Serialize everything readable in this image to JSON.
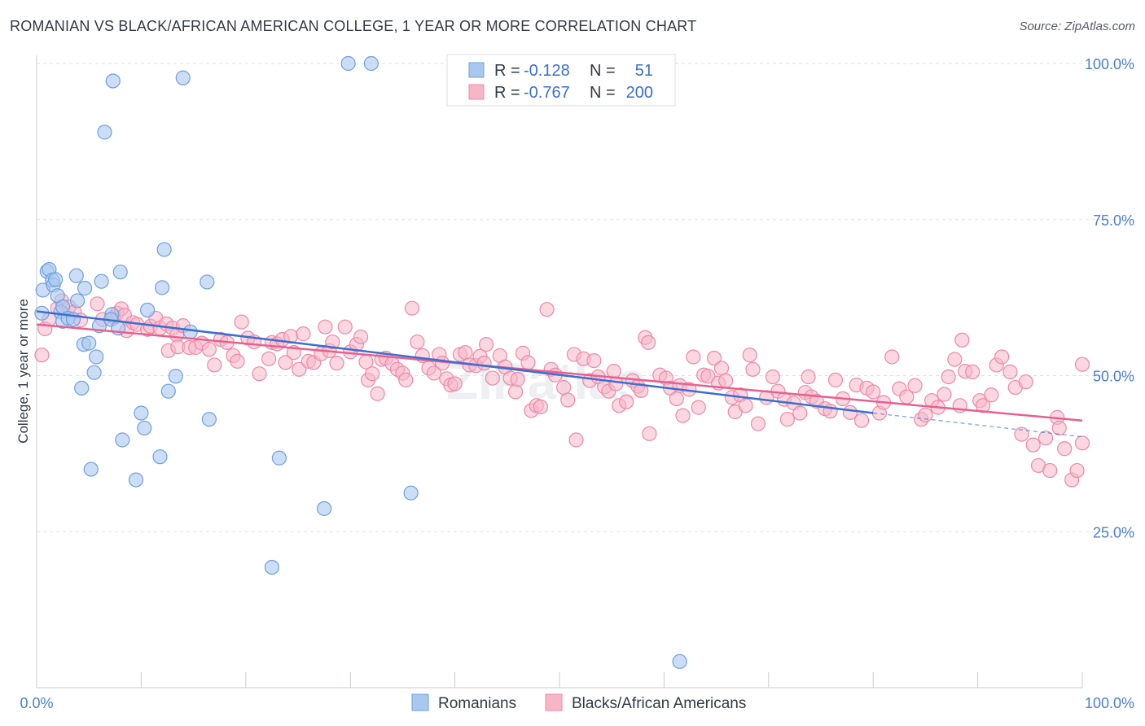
{
  "title": "ROMANIAN VS BLACK/AFRICAN AMERICAN COLLEGE, 1 YEAR OR MORE CORRELATION CHART",
  "source": "Source: ZipAtlas.com",
  "watermark": "ZIPatlas",
  "legend": {
    "r_label": "R =",
    "n_label": "N =",
    "rows": [
      {
        "r": "-0.128",
        "n": "51",
        "color": "#a8c8f0"
      },
      {
        "r": "-0.767",
        "n": "200",
        "color": "#f7b6c8"
      }
    ]
  },
  "bottom_legend": [
    "Romanians",
    "Blacks/African Americans"
  ],
  "chart_data": {
    "type": "scatter",
    "title": "ROMANIAN VS BLACK/AFRICAN AMERICAN COLLEGE, 1 YEAR OR MORE CORRELATION CHART",
    "xlabel": "",
    "ylabel": "College, 1 year or more",
    "xlim": [
      0,
      100
    ],
    "ylim": [
      0,
      103
    ],
    "x_tick_labels": [
      "0.0%",
      "100.0%"
    ],
    "y_ticks": [
      25,
      50,
      75,
      100
    ],
    "y_tick_labels": [
      "25.0%",
      "50.0%",
      "75.0%",
      "100.0%"
    ],
    "grid": true,
    "legend_position": "top-center",
    "colors": {
      "romanians_fill": "#a8c8f0",
      "romanians_stroke": "#6f9fe0",
      "romanians_line": "#3a6fd0",
      "blacks_fill": "#f7b6c8",
      "blacks_stroke": "#ee88a8",
      "blacks_line": "#e8608f"
    },
    "series": [
      {
        "name": "Romanians",
        "r": -0.128,
        "n": 51,
        "trend": {
          "x": [
            0,
            80
          ],
          "y": [
            60.3,
            44.0
          ],
          "extended_to": [
            100,
            40.2
          ]
        },
        "points": [
          [
            0.5,
            60
          ],
          [
            0.6,
            63.7
          ],
          [
            1,
            66.7
          ],
          [
            1.2,
            67
          ],
          [
            1.5,
            65.3
          ],
          [
            1.6,
            64.5
          ],
          [
            1.8,
            65.4
          ],
          [
            2,
            62.8
          ],
          [
            2.3,
            60.2
          ],
          [
            2.5,
            61
          ],
          [
            2.5,
            58.7
          ],
          [
            3,
            59.2
          ],
          [
            3.5,
            59
          ],
          [
            3.8,
            66
          ],
          [
            3.9,
            62
          ],
          [
            4.3,
            48
          ],
          [
            4.5,
            55
          ],
          [
            4.6,
            64
          ],
          [
            5,
            55.2
          ],
          [
            5.2,
            35
          ],
          [
            5.5,
            50.5
          ],
          [
            5.7,
            53
          ],
          [
            6,
            58
          ],
          [
            6.2,
            65.1
          ],
          [
            6.5,
            89
          ],
          [
            7.2,
            59.8
          ],
          [
            7.1,
            59
          ],
          [
            7.3,
            97.2
          ],
          [
            7.8,
            57.6
          ],
          [
            8,
            66.6
          ],
          [
            8.2,
            39.7
          ],
          [
            9.5,
            33.3
          ],
          [
            10,
            44
          ],
          [
            10.3,
            41.6
          ],
          [
            10.6,
            60.5
          ],
          [
            11.8,
            37
          ],
          [
            12,
            64.1
          ],
          [
            12.2,
            70.2
          ],
          [
            12.6,
            47.5
          ],
          [
            13.3,
            49.9
          ],
          [
            14,
            97.7
          ],
          [
            14.7,
            57
          ],
          [
            16.3,
            65
          ],
          [
            16.5,
            43
          ],
          [
            22.5,
            19.3
          ],
          [
            23.2,
            36.8
          ],
          [
            27.5,
            28.7
          ],
          [
            29.8,
            100
          ],
          [
            32,
            100
          ],
          [
            35.8,
            31.2
          ],
          [
            61.5,
            4.2
          ]
        ]
      },
      {
        "name": "Blacks/African Americans",
        "r": -0.767,
        "n": 200,
        "trend": {
          "x": [
            0,
            100
          ],
          "y": [
            58.2,
            42.8
          ]
        },
        "points": [
          [
            0.5,
            53.3
          ],
          [
            0.8,
            57.5
          ],
          [
            1.2,
            59
          ],
          [
            2,
            60.8
          ],
          [
            2.4,
            62
          ],
          [
            3.1,
            61
          ],
          [
            3.6,
            60.2
          ],
          [
            4.2,
            58.9
          ],
          [
            5.8,
            61.5
          ],
          [
            6.3,
            59
          ],
          [
            7.4,
            59.3
          ],
          [
            7.7,
            60
          ],
          [
            8.1,
            60.7
          ],
          [
            8.4,
            59.7
          ],
          [
            8.6,
            57.2
          ],
          [
            9.2,
            58.5
          ],
          [
            9.6,
            58.2
          ],
          [
            10.6,
            57.4
          ],
          [
            10.9,
            57.9
          ],
          [
            11.4,
            59.2
          ],
          [
            11.8,
            57.6
          ],
          [
            12.4,
            58.3
          ],
          [
            12.6,
            54
          ],
          [
            13,
            57.6
          ],
          [
            13.4,
            56.5
          ],
          [
            13.5,
            54.6
          ],
          [
            14,
            58
          ],
          [
            14.6,
            54.5
          ],
          [
            15.2,
            54.5
          ],
          [
            15.8,
            55.2
          ],
          [
            16.5,
            54.2
          ],
          [
            17,
            51.7
          ],
          [
            17.6,
            55.8
          ],
          [
            18.2,
            55.3
          ],
          [
            18.8,
            53.2
          ],
          [
            19.2,
            52.3
          ],
          [
            19.6,
            58.6
          ],
          [
            20.2,
            56
          ],
          [
            20.8,
            55.4
          ],
          [
            21.3,
            50.3
          ],
          [
            22.2,
            52.7
          ],
          [
            22.5,
            55.3
          ],
          [
            23,
            55.1
          ],
          [
            23.5,
            55.8
          ],
          [
            23.8,
            52.1
          ],
          [
            24.3,
            56.3
          ],
          [
            24.6,
            53.7
          ],
          [
            25.1,
            51
          ],
          [
            25.5,
            56.7
          ],
          [
            26,
            52.3
          ],
          [
            26.5,
            52.1
          ],
          [
            27.2,
            53.5
          ],
          [
            27.6,
            57.8
          ],
          [
            28,
            54
          ],
          [
            28.3,
            55.4
          ],
          [
            28.7,
            52
          ],
          [
            29.5,
            57.8
          ],
          [
            30,
            53.8
          ],
          [
            30.6,
            55
          ],
          [
            31,
            56.2
          ],
          [
            31.5,
            52.2
          ],
          [
            31.7,
            49.3
          ],
          [
            32.1,
            50.3
          ],
          [
            32.6,
            47.1
          ],
          [
            33,
            52.6
          ],
          [
            33.4,
            52.8
          ],
          [
            34,
            51.9
          ],
          [
            34.5,
            51
          ],
          [
            35,
            50.4
          ],
          [
            35.3,
            49.3
          ],
          [
            35.9,
            60.8
          ],
          [
            36.4,
            55.4
          ],
          [
            36.9,
            53.2
          ],
          [
            37.5,
            51.2
          ],
          [
            38,
            50.4
          ],
          [
            38.5,
            53.4
          ],
          [
            38.8,
            52
          ],
          [
            39.2,
            49.5
          ],
          [
            39.6,
            48.5
          ],
          [
            40,
            48.7
          ],
          [
            40.5,
            53.4
          ],
          [
            41,
            53.7
          ],
          [
            41.4,
            51.7
          ],
          [
            42,
            51.6
          ],
          [
            42.4,
            53.1
          ],
          [
            42.8,
            52
          ],
          [
            43,
            55
          ],
          [
            43.6,
            49.6
          ],
          [
            44.3,
            53.2
          ],
          [
            44.8,
            51.4
          ],
          [
            45.3,
            49.6
          ],
          [
            45.8,
            47.4
          ],
          [
            46,
            49.4
          ],
          [
            46.5,
            53.6
          ],
          [
            47,
            52.1
          ],
          [
            47.3,
            44.4
          ],
          [
            47.8,
            45.2
          ],
          [
            48.2,
            45
          ],
          [
            48.8,
            60.6
          ],
          [
            49.2,
            51
          ],
          [
            49.6,
            50.1
          ],
          [
            50.4,
            48.1
          ],
          [
            50.8,
            46.1
          ],
          [
            51.4,
            53.4
          ],
          [
            51.6,
            39.7
          ],
          [
            52.3,
            52.7
          ],
          [
            52.9,
            49.2
          ],
          [
            53.3,
            52.4
          ],
          [
            53.7,
            49.8
          ],
          [
            54.3,
            48.2
          ],
          [
            54.7,
            47.5
          ],
          [
            55.2,
            50.7
          ],
          [
            55.4,
            48.7
          ],
          [
            55.7,
            45.2
          ],
          [
            56.4,
            45.8
          ],
          [
            57,
            49.2
          ],
          [
            57.5,
            48.3
          ],
          [
            57.8,
            47.6
          ],
          [
            58.2,
            56.1
          ],
          [
            58.6,
            40.7
          ],
          [
            59.6,
            50.1
          ],
          [
            60.2,
            49.6
          ],
          [
            60.6,
            48
          ],
          [
            61.2,
            46.3
          ],
          [
            61.5,
            48.4
          ],
          [
            61.8,
            43.6
          ],
          [
            62.4,
            47.8
          ],
          [
            62.8,
            53
          ],
          [
            63.3,
            44.9
          ],
          [
            63.8,
            50.1
          ],
          [
            64.2,
            49.9
          ],
          [
            64.8,
            52.8
          ],
          [
            65.2,
            48.8
          ],
          [
            65.5,
            51.2
          ],
          [
            65.9,
            49.2
          ],
          [
            66.5,
            46.5
          ],
          [
            66.8,
            44.2
          ],
          [
            67.3,
            46.9
          ],
          [
            67.8,
            45.2
          ],
          [
            68.2,
            53.3
          ],
          [
            68.5,
            51
          ],
          [
            69,
            42.3
          ],
          [
            69.8,
            46.5
          ],
          [
            70.4,
            49.8
          ],
          [
            70.9,
            47.5
          ],
          [
            71.5,
            46.2
          ],
          [
            71.8,
            43
          ],
          [
            72.4,
            45.6
          ],
          [
            73,
            44
          ],
          [
            73.5,
            47.3
          ],
          [
            73.8,
            49.8
          ],
          [
            74.1,
            46.6
          ],
          [
            74.6,
            45.9
          ],
          [
            75.4,
            44.7
          ],
          [
            75.9,
            44.3
          ],
          [
            76.4,
            49.3
          ],
          [
            77.1,
            46.3
          ],
          [
            77.8,
            44.1
          ],
          [
            78.4,
            48.5
          ],
          [
            78.9,
            42.8
          ],
          [
            79.4,
            48
          ],
          [
            80,
            47.4
          ],
          [
            80.6,
            44
          ],
          [
            81,
            45.7
          ],
          [
            81.8,
            53
          ],
          [
            82.5,
            47.9
          ],
          [
            83.2,
            46.6
          ],
          [
            84,
            48.4
          ],
          [
            84.6,
            43
          ],
          [
            85,
            43.7
          ],
          [
            85.6,
            46
          ],
          [
            86.2,
            44.9
          ],
          [
            86.8,
            47
          ],
          [
            87.2,
            49.8
          ],
          [
            87.8,
            52.6
          ],
          [
            88.3,
            45.2
          ],
          [
            88.8,
            50.7
          ],
          [
            89.5,
            50.6
          ],
          [
            90.2,
            46
          ],
          [
            90.5,
            45.2
          ],
          [
            91.3,
            46.9
          ],
          [
            91.8,
            51.7
          ],
          [
            92.3,
            53
          ],
          [
            93.1,
            50.6
          ],
          [
            93.6,
            48.1
          ],
          [
            94.2,
            40.6
          ],
          [
            94.6,
            49
          ],
          [
            95.3,
            38.9
          ],
          [
            95.8,
            35.6
          ],
          [
            96.5,
            40
          ],
          [
            96.9,
            34.8
          ],
          [
            97.6,
            43.3
          ],
          [
            97.8,
            41.6
          ],
          [
            98.3,
            38.3
          ],
          [
            99,
            33.3
          ],
          [
            99.5,
            34.8
          ],
          [
            100,
            51.8
          ],
          [
            100,
            39.2
          ],
          [
            58.5,
            55.3
          ],
          [
            88.5,
            55.7
          ]
        ]
      }
    ]
  }
}
